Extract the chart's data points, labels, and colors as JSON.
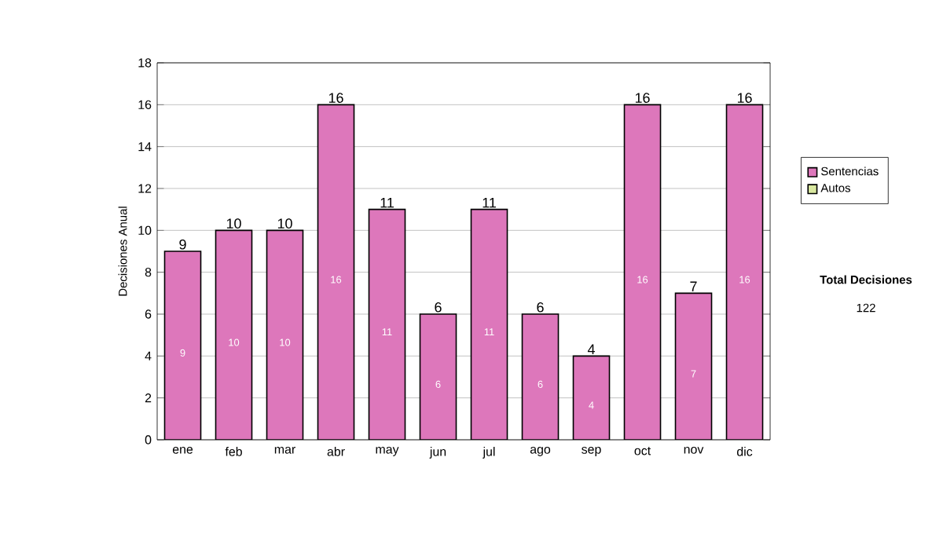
{
  "chart_data": {
    "type": "bar",
    "stacked": true,
    "categories": [
      "ene",
      "feb",
      "mar",
      "abr",
      "may",
      "jun",
      "jul",
      "ago",
      "sep",
      "oct",
      "nov",
      "dic"
    ],
    "ylabel": "Decisiones Anual",
    "series": [
      {
        "name": "Sentencias",
        "color": "#dd77bb",
        "values": [
          9,
          10,
          10,
          16,
          11,
          6,
          11,
          6,
          4,
          16,
          7,
          16
        ],
        "value_labels": [
          "9",
          "10",
          "10",
          "16",
          "11",
          "6",
          "11",
          "6",
          "4",
          "16",
          "7",
          "16"
        ]
      },
      {
        "name": "Autos",
        "color": "#d9e8a0",
        "values": [
          0,
          0,
          0,
          0,
          0,
          0,
          0,
          0,
          0,
          0,
          0,
          0
        ]
      }
    ],
    "totals": [
      "9",
      "10",
      "10",
      "16",
      "11",
      "6",
      "11",
      "6",
      "4",
      "16",
      "7",
      "16"
    ],
    "ylim": [
      0,
      18
    ],
    "yticks": [
      0,
      2,
      4,
      6,
      8,
      10,
      12,
      14,
      16,
      18
    ],
    "grid": "y",
    "legend": "right",
    "annotations": [
      "Total Decisiones",
      "122"
    ]
  }
}
